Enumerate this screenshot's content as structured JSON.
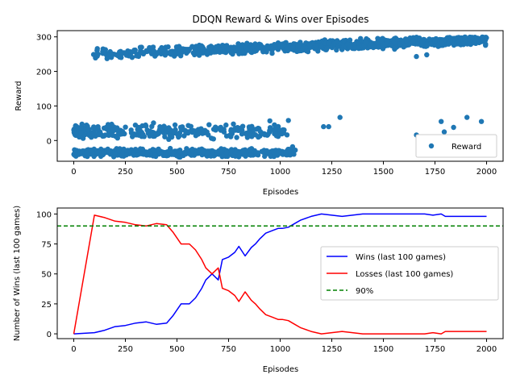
{
  "chart_data": [
    {
      "type": "scatter",
      "title": "DDQN Reward & Wins over Episodes",
      "xlabel": "Episodes",
      "ylabel": "Reward",
      "xlim": [
        -80,
        2080
      ],
      "ylim": [
        -60,
        318
      ],
      "xticks": [
        0,
        250,
        500,
        750,
        1000,
        1250,
        1500,
        1750,
        2000
      ],
      "yticks": [
        0,
        100,
        200,
        300
      ],
      "legend": "lower-right",
      "grid": false,
      "series": [
        {
          "name": "Reward",
          "color": "#1f77b4",
          "marker": "circle",
          "clusters": [
            {
              "x": [
                0,
                1080
              ],
              "y_center": -35,
              "y_spread": 15,
              "n": 520
            },
            {
              "x": [
                0,
                1050
              ],
              "y_center": 25,
              "y_spread": 30,
              "n": 300
            },
            {
              "x": [
                80,
                2000
              ],
              "y_center": "rising 250 to 292",
              "y_spread": 20,
              "n": 900
            }
          ],
          "sparse_points": [
            [
              1210,
              40
            ],
            [
              1235,
              40
            ],
            [
              1290,
              67
            ],
            [
              1660,
              16
            ],
            [
              1780,
              55
            ],
            [
              1795,
              25
            ],
            [
              1840,
              38
            ],
            [
              1905,
              67
            ],
            [
              1975,
              55
            ],
            [
              1660,
              243
            ],
            [
              1710,
              248
            ],
            [
              1040,
              58
            ],
            [
              1060,
              -18
            ],
            [
              950,
              57
            ],
            [
              980,
              38
            ]
          ]
        }
      ]
    },
    {
      "type": "line",
      "title": "",
      "xlabel": "Episodes",
      "ylabel": "Number of Wins (last 100 games)",
      "xlim": [
        -80,
        2080
      ],
      "ylim": [
        -4,
        105
      ],
      "xticks": [
        0,
        250,
        500,
        750,
        1000,
        1250,
        1500,
        1750,
        2000
      ],
      "yticks": [
        0,
        25,
        50,
        75,
        100
      ],
      "legend": "center-right",
      "grid": false,
      "series": [
        {
          "name": "Wins (last 100 games)",
          "color": "#0000ff",
          "x": [
            0,
            100,
            150,
            200,
            250,
            300,
            350,
            400,
            450,
            480,
            520,
            560,
            590,
            620,
            640,
            670,
            700,
            720,
            750,
            780,
            800,
            830,
            860,
            880,
            900,
            930,
            960,
            990,
            1010,
            1040,
            1070,
            1100,
            1150,
            1200,
            1250,
            1300,
            1350,
            1400,
            1500,
            1600,
            1700,
            1740,
            1780,
            1800,
            1850,
            1900,
            2000
          ],
          "values": [
            0,
            1,
            3,
            6,
            7,
            9,
            10,
            8,
            9,
            15,
            25,
            25,
            30,
            38,
            45,
            50,
            45,
            62,
            64,
            68,
            73,
            65,
            72,
            75,
            79,
            84,
            86,
            88,
            88,
            89,
            92,
            95,
            98,
            100,
            99,
            98,
            99,
            100,
            100,
            100,
            100,
            99,
            100,
            98,
            98,
            98,
            98
          ]
        },
        {
          "name": "Losses (last 100 games)",
          "color": "#ff0000",
          "x": [
            0,
            100,
            150,
            200,
            250,
            300,
            350,
            400,
            450,
            480,
            520,
            560,
            590,
            620,
            640,
            670,
            700,
            720,
            750,
            780,
            800,
            830,
            860,
            880,
            900,
            930,
            960,
            990,
            1010,
            1040,
            1070,
            1100,
            1150,
            1200,
            1250,
            1300,
            1350,
            1400,
            1500,
            1600,
            1700,
            1740,
            1780,
            1800,
            1850,
            1900,
            2000
          ],
          "values": [
            0,
            99,
            97,
            94,
            93,
            91,
            90,
            92,
            91,
            85,
            75,
            75,
            70,
            62,
            55,
            50,
            55,
            38,
            36,
            32,
            27,
            35,
            28,
            25,
            21,
            16,
            14,
            12,
            12,
            11,
            8,
            5,
            2,
            0,
            1,
            2,
            1,
            0,
            0,
            0,
            0,
            1,
            0,
            2,
            2,
            2,
            2
          ]
        },
        {
          "name": "90%",
          "color": "#008000",
          "style": "dashed",
          "constant": 90
        }
      ]
    }
  ]
}
